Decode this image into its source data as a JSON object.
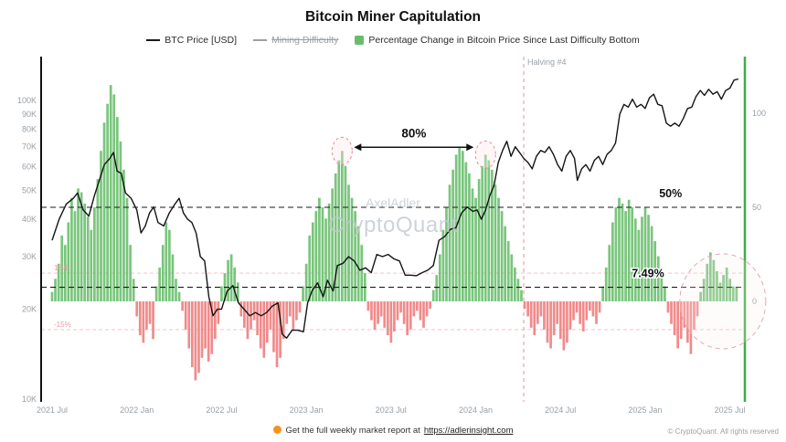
{
  "legend": [
    {
      "label": "BTC Price [USD]",
      "swatch": "line",
      "color": "#1a1a1a",
      "disabled": false
    },
    {
      "label": "Mining Difficulty",
      "swatch": "line",
      "color": "#9aa0a6",
      "disabled": true
    },
    {
      "label": "Percentage Change in Bitcoin Price Since Last Difficulty Bottom",
      "swatch": "square",
      "color": "#67bd6a",
      "disabled": false
    }
  ],
  "watermark": {
    "line1": "AxelAdler",
    "line2": "CryptoQuant"
  },
  "footer": {
    "text": "Get the full weekly market report at",
    "link": "https://adlerinsight.com",
    "copyright": "© CryptoQuant. All rights reserved"
  },
  "chart_data": {
    "type": "mixed",
    "title": "Bitcoin Miner Capitulation",
    "x_axis": {
      "ticks": [
        {
          "t": 0,
          "label": "2021 Jul"
        },
        {
          "t": 6,
          "label": "2022 Jan"
        },
        {
          "t": 12,
          "label": "2022 Jul"
        },
        {
          "t": 18,
          "label": "2023 Jan"
        },
        {
          "t": 24,
          "label": "2023 Jul"
        },
        {
          "t": 30,
          "label": "2024 Jan"
        },
        {
          "t": 36,
          "label": "2024 Jul"
        },
        {
          "t": 42,
          "label": "2025 Jan"
        },
        {
          "t": 48,
          "label": "2025 Jul"
        }
      ]
    },
    "y_axis_left": {
      "scale": "log",
      "unit": "USD",
      "ticks": [
        {
          "v": 10,
          "label": "10K"
        },
        {
          "v": 20,
          "label": "20K"
        },
        {
          "v": 30,
          "label": "30K"
        },
        {
          "v": 40,
          "label": "40K"
        },
        {
          "v": 50,
          "label": "50K"
        },
        {
          "v": 60,
          "label": "60K"
        },
        {
          "v": 70,
          "label": "70K"
        },
        {
          "v": 80,
          "label": "80K"
        },
        {
          "v": 90,
          "label": "90K"
        },
        {
          "v": 100,
          "label": "100K"
        }
      ]
    },
    "y_axis_right": {
      "unit": "%",
      "ticks": [
        {
          "v": 0,
          "label": "0"
        },
        {
          "v": 50,
          "label": "50"
        },
        {
          "v": 100,
          "label": "100"
        }
      ]
    },
    "price_series": {
      "name": "BTC Price [USD]",
      "color": "#141414",
      "unit": "thousand USD",
      "points": [
        [
          0,
          34
        ],
        [
          0.5,
          40
        ],
        [
          1,
          45
        ],
        [
          1.5,
          47
        ],
        [
          1.8,
          49
        ],
        [
          2.2,
          43
        ],
        [
          2.6,
          41
        ],
        [
          3,
          48
        ],
        [
          3.4,
          55
        ],
        [
          3.7,
          61
        ],
        [
          4.1,
          64
        ],
        [
          4.35,
          67
        ],
        [
          4.6,
          58
        ],
        [
          4.9,
          57
        ],
        [
          5.2,
          49
        ],
        [
          5.6,
          47
        ],
        [
          6,
          43
        ],
        [
          6.3,
          36
        ],
        [
          6.6,
          38
        ],
        [
          6.9,
          42
        ],
        [
          7.2,
          44
        ],
        [
          7.5,
          39
        ],
        [
          7.9,
          38
        ],
        [
          8.3,
          42
        ],
        [
          8.7,
          45
        ],
        [
          9,
          47
        ],
        [
          9.3,
          42
        ],
        [
          9.6,
          40
        ],
        [
          9.9,
          39
        ],
        [
          10.2,
          36
        ],
        [
          10.5,
          30
        ],
        [
          10.8,
          29
        ],
        [
          11.1,
          22
        ],
        [
          11.4,
          19
        ],
        [
          11.7,
          20
        ],
        [
          12,
          20
        ],
        [
          12.4,
          23
        ],
        [
          12.8,
          24
        ],
        [
          13.2,
          21
        ],
        [
          13.6,
          20
        ],
        [
          14,
          19
        ],
        [
          14.4,
          19.5
        ],
        [
          14.8,
          19
        ],
        [
          15.2,
          19.5
        ],
        [
          15.6,
          20.5
        ],
        [
          16,
          21
        ],
        [
          16.3,
          16.5
        ],
        [
          16.6,
          16
        ],
        [
          17,
          17
        ],
        [
          17.4,
          17
        ],
        [
          17.8,
          16.8
        ],
        [
          18.1,
          21
        ],
        [
          18.4,
          23
        ],
        [
          18.8,
          24.5
        ],
        [
          19.2,
          22
        ],
        [
          19.5,
          25
        ],
        [
          19.9,
          23
        ],
        [
          20.2,
          28
        ],
        [
          20.6,
          28.5
        ],
        [
          21,
          30
        ],
        [
          21.4,
          29
        ],
        [
          21.8,
          27
        ],
        [
          22.2,
          27.5
        ],
        [
          22.6,
          26.5
        ],
        [
          23,
          30.5
        ],
        [
          23.4,
          30
        ],
        [
          23.8,
          30.5
        ],
        [
          24.2,
          29.5
        ],
        [
          24.6,
          29
        ],
        [
          25,
          26
        ],
        [
          25.4,
          26
        ],
        [
          25.8,
          25.9
        ],
        [
          26.2,
          26.5
        ],
        [
          26.6,
          27
        ],
        [
          27,
          28
        ],
        [
          27.4,
          34
        ],
        [
          27.8,
          35
        ],
        [
          28.2,
          37
        ],
        [
          28.6,
          37.5
        ],
        [
          29,
          42
        ],
        [
          29.4,
          44
        ],
        [
          29.8,
          42.5
        ],
        [
          30.1,
          43
        ],
        [
          30.4,
          40
        ],
        [
          30.7,
          43
        ],
        [
          31,
          48
        ],
        [
          31.3,
          52
        ],
        [
          31.6,
          62
        ],
        [
          31.9,
          68
        ],
        [
          32.2,
          73
        ],
        [
          32.5,
          65
        ],
        [
          32.8,
          70
        ],
        [
          33.1,
          67
        ],
        [
          33.4,
          64
        ],
        [
          33.7,
          62
        ],
        [
          34,
          59
        ],
        [
          34.3,
          65
        ],
        [
          34.6,
          68
        ],
        [
          34.9,
          67
        ],
        [
          35.2,
          70
        ],
        [
          35.5,
          66
        ],
        [
          35.8,
          61
        ],
        [
          36.1,
          58
        ],
        [
          36.4,
          65
        ],
        [
          36.7,
          68
        ],
        [
          37,
          64
        ],
        [
          37.2,
          54
        ],
        [
          37.5,
          59
        ],
        [
          37.8,
          61
        ],
        [
          38.1,
          58
        ],
        [
          38.4,
          63
        ],
        [
          38.7,
          65
        ],
        [
          39,
          61
        ],
        [
          39.3,
          66
        ],
        [
          39.6,
          68
        ],
        [
          39.9,
          72
        ],
        [
          40.2,
          90
        ],
        [
          40.5,
          97
        ],
        [
          40.8,
          95
        ],
        [
          41.1,
          101
        ],
        [
          41.4,
          95
        ],
        [
          41.7,
          97
        ],
        [
          42,
          94
        ],
        [
          42.3,
          102
        ],
        [
          42.6,
          105
        ],
        [
          42.9,
          97
        ],
        [
          43.2,
          96
        ],
        [
          43.5,
          84
        ],
        [
          43.8,
          82
        ],
        [
          44.1,
          84
        ],
        [
          44.4,
          82
        ],
        [
          44.7,
          87
        ],
        [
          45,
          94
        ],
        [
          45.3,
          95
        ],
        [
          45.6,
          103
        ],
        [
          45.9,
          108
        ],
        [
          46.2,
          104
        ],
        [
          46.5,
          109
        ],
        [
          46.8,
          105
        ],
        [
          47.1,
          107
        ],
        [
          47.4,
          101
        ],
        [
          47.7,
          108
        ],
        [
          48,
          110
        ],
        [
          48.3,
          117
        ],
        [
          48.6,
          118
        ]
      ]
    },
    "pct_bars": {
      "name": "Percentage Change in Bitcoin Price Since Last Difficulty Bottom",
      "start": 0,
      "step": 0.2308,
      "unit": "%",
      "positive_color": "#6cbf6f",
      "negative_color": "#ee7e7e",
      "values": [
        5,
        12,
        20,
        35,
        30,
        42,
        55,
        48,
        60,
        58,
        52,
        45,
        38,
        50,
        65,
        80,
        95,
        105,
        115,
        110,
        98,
        85,
        70,
        55,
        30,
        12,
        -8,
        -18,
        -22,
        -15,
        -12,
        -20,
        8,
        18,
        30,
        42,
        38,
        25,
        12,
        5,
        -5,
        -15,
        -25,
        -35,
        -42,
        -38,
        -30,
        -25,
        -32,
        -28,
        -20,
        -12,
        8,
        15,
        22,
        25,
        18,
        10,
        -8,
        -14,
        -20,
        -15,
        -10,
        -18,
        -25,
        -30,
        -22,
        -15,
        -27,
        -35,
        -30,
        -20,
        -12,
        -8,
        -15,
        -10,
        -6,
        8,
        20,
        35,
        42,
        48,
        55,
        50,
        44,
        52,
        60,
        68,
        75,
        80,
        72,
        62,
        55,
        48,
        40,
        30,
        15,
        -5,
        -10,
        -15,
        -12,
        -8,
        -14,
        -18,
        -22,
        -16,
        -10,
        -6,
        -12,
        -18,
        -15,
        -8,
        -5,
        -10,
        -14,
        -8,
        -4,
        6,
        14,
        25,
        38,
        50,
        62,
        70,
        78,
        82,
        80,
        74,
        68,
        60,
        55,
        65,
        72,
        78,
        75,
        70,
        62,
        55,
        48,
        40,
        32,
        25,
        18,
        12,
        6,
        -4,
        -8,
        -14,
        -18,
        -12,
        -8,
        -15,
        -22,
        -25,
        -18,
        -12,
        -20,
        -26,
        -22,
        -15,
        -10,
        -6,
        -12,
        -16,
        -10,
        -5,
        -8,
        -12,
        -6,
        8,
        18,
        30,
        42,
        50,
        55,
        52,
        48,
        54,
        50,
        44,
        38,
        45,
        50,
        46,
        40,
        32,
        24,
        15,
        8,
        -6,
        -12,
        -18,
        -25,
        -20,
        -14,
        -22,
        -28,
        -15,
        -8,
        5,
        12,
        20,
        26,
        22,
        16,
        10,
        14,
        18,
        12,
        8,
        7.49
      ]
    },
    "annotations": {
      "halving": {
        "label": "Halving #4",
        "t": 33.4
      },
      "arrow_label": "80%",
      "peak_circles": [
        {
          "t": 20.54,
          "pct": 80
        },
        {
          "t": 30.7,
          "pct": 78
        }
      ],
      "h_lines": [
        {
          "value": 50,
          "label": "50%",
          "style": "black-dashed"
        },
        {
          "value": 7.49,
          "label": "7.49%",
          "style": "black-dashed"
        },
        {
          "value": 15,
          "label": "15%",
          "style": "pink-dashed"
        },
        {
          "value": -15,
          "label": "-15%",
          "style": "pink-dashed"
        }
      ],
      "highlight_circle": {
        "t": 47.5,
        "pct": 0
      },
      "colors": {
        "pink": "#eea4b2",
        "black": "#1a1a1a",
        "right_spine_green": "#3fae49"
      }
    }
  }
}
